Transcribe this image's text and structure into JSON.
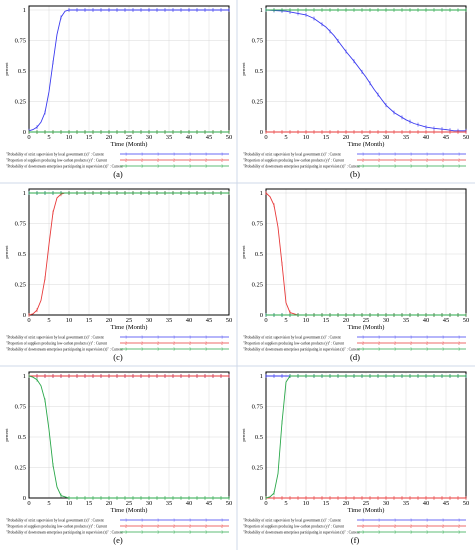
{
  "chart_data": [
    {
      "panel_label": "(a)",
      "type": "line",
      "xlabel": "Time (Month)",
      "ylabel": "percent",
      "xlim": [
        0,
        50
      ],
      "ylim": [
        0,
        1
      ],
      "xticks": [
        0,
        5,
        10,
        15,
        20,
        25,
        30,
        35,
        40,
        45,
        50
      ],
      "yticks": [
        0,
        0.25,
        0.5,
        0.75,
        1
      ],
      "series": [
        {
          "name": "\"Probability of strict supervision by local government (x)\" : Current",
          "color": "#3a3af0",
          "marker": "1",
          "x": [
            0,
            1,
            2,
            3,
            4,
            5,
            6,
            7,
            8,
            9,
            10,
            12,
            15,
            20,
            25,
            30,
            35,
            40,
            45,
            50
          ],
          "y": [
            0.01,
            0.02,
            0.04,
            0.08,
            0.16,
            0.33,
            0.57,
            0.8,
            0.94,
            0.99,
            1,
            1,
            1,
            1,
            1,
            1,
            1,
            1,
            1,
            1
          ]
        },
        {
          "name": "\"Proportion of suppliers producing low-carbon products (y)\" : Current",
          "color": "#e83a3a",
          "marker": "2",
          "x": [
            0,
            10,
            20,
            30,
            40,
            50
          ],
          "y": [
            0,
            0,
            0,
            0,
            0,
            0
          ]
        },
        {
          "name": "\"Probability of downstream enterprises participating in supervision (z)\" : Current",
          "color": "#2aa84a",
          "marker": "3",
          "x": [
            0,
            10,
            20,
            30,
            40,
            50
          ],
          "y": [
            0,
            0,
            0,
            0,
            0,
            0
          ]
        }
      ]
    },
    {
      "panel_label": "(b)",
      "type": "line",
      "xlabel": "Time (Month)",
      "ylabel": "percent",
      "xlim": [
        0,
        50
      ],
      "ylim": [
        0,
        1
      ],
      "xticks": [
        0,
        5,
        10,
        15,
        20,
        25,
        30,
        35,
        40,
        45,
        50
      ],
      "yticks": [
        0,
        0.25,
        0.5,
        0.75,
        1
      ],
      "series": [
        {
          "name": "\"Probability of strict supervision by local government (x)\" : Current",
          "color": "#3a3af0",
          "marker": "1",
          "x": [
            0,
            5,
            10,
            12,
            15,
            17,
            20,
            22,
            25,
            27,
            30,
            32,
            35,
            37,
            40,
            42,
            45,
            47,
            50
          ],
          "y": [
            1,
            0.99,
            0.96,
            0.93,
            0.86,
            0.79,
            0.66,
            0.58,
            0.45,
            0.35,
            0.22,
            0.16,
            0.1,
            0.07,
            0.04,
            0.03,
            0.02,
            0.01,
            0.01
          ]
        },
        {
          "name": "\"Proportion of suppliers producing low-carbon products (y)\" : Current",
          "color": "#e83a3a",
          "marker": "2",
          "x": [
            0,
            10,
            20,
            30,
            40,
            50
          ],
          "y": [
            0,
            0,
            0,
            0,
            0,
            0
          ]
        },
        {
          "name": "\"Probability of downstream enterprises participating in supervision (z)\" : Current",
          "color": "#2aa84a",
          "marker": "3",
          "x": [
            0,
            10,
            20,
            30,
            40,
            50
          ],
          "y": [
            1,
            1,
            1,
            1,
            1,
            1
          ]
        }
      ]
    },
    {
      "panel_label": "(c)",
      "type": "line",
      "xlabel": "Time (Month)",
      "ylabel": "percent",
      "xlim": [
        0,
        50
      ],
      "ylim": [
        0,
        1
      ],
      "xticks": [
        0,
        5,
        10,
        15,
        20,
        25,
        30,
        35,
        40,
        45,
        50
      ],
      "yticks": [
        0,
        0.25,
        0.5,
        0.75,
        1
      ],
      "series": [
        {
          "name": "\"Probability of strict supervision by local government (x)\" : Current",
          "color": "#3a3af0",
          "marker": "1",
          "x": [
            0,
            10,
            20,
            30,
            40,
            50
          ],
          "y": [
            1,
            1,
            1,
            1,
            1,
            1
          ]
        },
        {
          "name": "\"Proportion of suppliers producing low-carbon products (y)\" : Current",
          "color": "#e83a3a",
          "marker": "2",
          "x": [
            0,
            1,
            2,
            3,
            4,
            5,
            6,
            7,
            8,
            9,
            10,
            15,
            20,
            30,
            40,
            50
          ],
          "y": [
            0,
            0.01,
            0.04,
            0.12,
            0.3,
            0.58,
            0.84,
            0.96,
            0.99,
            1,
            1,
            1,
            1,
            1,
            1,
            1
          ]
        },
        {
          "name": "\"Probability of downstream enterprises participating in supervision (z)\" : Current",
          "color": "#2aa84a",
          "marker": "3",
          "x": [
            0,
            10,
            20,
            30,
            40,
            50
          ],
          "y": [
            1,
            1,
            1,
            1,
            1,
            1
          ]
        }
      ]
    },
    {
      "panel_label": "(d)",
      "type": "line",
      "xlabel": "Time (Month)",
      "ylabel": "percent",
      "xlim": [
        0,
        50
      ],
      "ylim": [
        0,
        1
      ],
      "xticks": [
        0,
        5,
        10,
        15,
        20,
        25,
        30,
        35,
        40,
        45,
        50
      ],
      "yticks": [
        0,
        0.25,
        0.5,
        0.75,
        1
      ],
      "series": [
        {
          "name": "\"Probability of strict supervision by local government (x)\" : Current",
          "color": "#3a3af0",
          "marker": "1",
          "x": [
            0,
            10,
            20,
            30,
            40,
            50
          ],
          "y": [
            0,
            0,
            0,
            0,
            0,
            0
          ]
        },
        {
          "name": "\"Proportion of suppliers producing low-carbon products (y)\" : Current",
          "color": "#e83a3a",
          "marker": "2",
          "x": [
            0,
            1,
            2,
            3,
            4,
            5,
            6,
            7,
            8,
            10,
            20,
            30,
            40,
            50
          ],
          "y": [
            1,
            0.97,
            0.9,
            0.72,
            0.42,
            0.1,
            0.02,
            0.01,
            0,
            0,
            0,
            0,
            0,
            0
          ]
        },
        {
          "name": "\"Probability of downstream enterprises participating in supervision (z)\" : Current",
          "color": "#2aa84a",
          "marker": "3",
          "x": [
            0,
            10,
            20,
            30,
            40,
            50
          ],
          "y": [
            0,
            0,
            0,
            0,
            0,
            0
          ]
        }
      ]
    },
    {
      "panel_label": "(e)",
      "type": "line",
      "xlabel": "Time (Month)",
      "ylabel": "percent",
      "xlim": [
        0,
        50
      ],
      "ylim": [
        0,
        1
      ],
      "xticks": [
        0,
        5,
        10,
        15,
        20,
        25,
        30,
        35,
        40,
        45,
        50
      ],
      "yticks": [
        0,
        0.25,
        0.5,
        0.75,
        1
      ],
      "series": [
        {
          "name": "\"Probability of strict supervision by local government (x)\" : Current",
          "color": "#3a3af0",
          "marker": "1",
          "x": [
            0,
            10,
            20,
            30,
            40,
            50
          ],
          "y": [
            1,
            1,
            1,
            1,
            1,
            1
          ]
        },
        {
          "name": "\"Proportion of suppliers producing low-carbon products (y)\" : Current",
          "color": "#e83a3a",
          "marker": "2",
          "x": [
            0,
            10,
            20,
            30,
            40,
            50
          ],
          "y": [
            1,
            1,
            1,
            1,
            1,
            1
          ]
        },
        {
          "name": "\"Probability of downstream enterprises participating in supervision (z)\" : Current",
          "color": "#2aa84a",
          "marker": "3",
          "x": [
            0,
            1,
            2,
            3,
            4,
            5,
            6,
            7,
            8,
            9,
            10,
            15,
            20,
            30,
            40,
            50
          ],
          "y": [
            1,
            0.99,
            0.97,
            0.92,
            0.8,
            0.56,
            0.27,
            0.09,
            0.02,
            0.01,
            0,
            0,
            0,
            0,
            0,
            0
          ]
        }
      ]
    },
    {
      "panel_label": "(f)",
      "type": "line",
      "xlabel": "Time (Month)",
      "ylabel": "percent",
      "xlim": [
        0,
        50
      ],
      "ylim": [
        0,
        1
      ],
      "xticks": [
        0,
        5,
        10,
        15,
        20,
        25,
        30,
        35,
        40,
        45,
        50
      ],
      "yticks": [
        0,
        0.25,
        0.5,
        0.75,
        1
      ],
      "series": [
        {
          "name": "\"Probability of strict supervision by local government (x)\" : Current",
          "color": "#3a3af0",
          "marker": "1",
          "x": [
            0,
            10,
            20,
            30,
            40,
            50
          ],
          "y": [
            1,
            1,
            1,
            1,
            1,
            1
          ]
        },
        {
          "name": "\"Proportion of suppliers producing low-carbon products (y)\" : Current",
          "color": "#e83a3a",
          "marker": "2",
          "x": [
            0,
            10,
            20,
            30,
            40,
            50
          ],
          "y": [
            0,
            0,
            0,
            0,
            0,
            0
          ]
        },
        {
          "name": "\"Probability of downstream enterprises participating in supervision (z)\" : Current",
          "color": "#2aa84a",
          "marker": "3",
          "x": [
            0,
            1,
            2,
            3,
            4,
            5,
            6,
            7,
            10,
            20,
            30,
            40,
            50
          ],
          "y": [
            0,
            0.01,
            0.04,
            0.2,
            0.62,
            0.95,
            1,
            1,
            1,
            1,
            1,
            1,
            1
          ]
        }
      ]
    }
  ]
}
